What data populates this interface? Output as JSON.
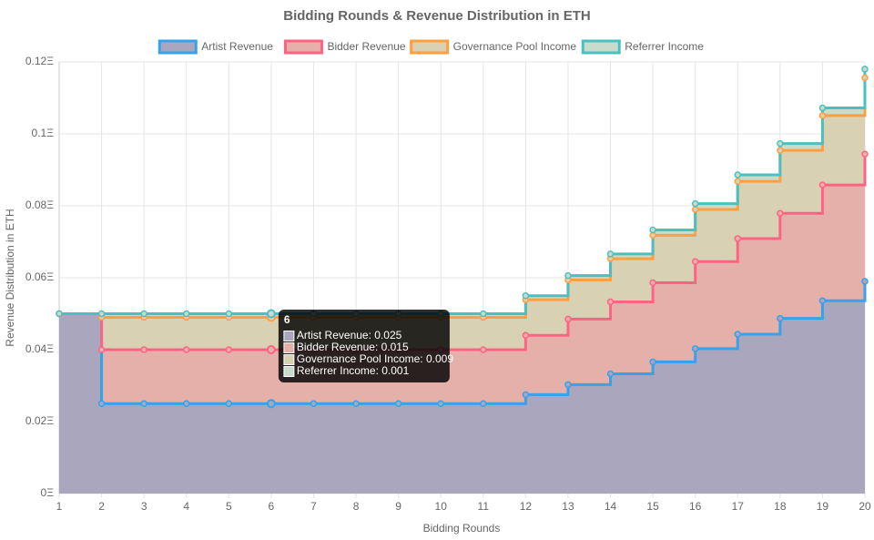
{
  "chart_data": {
    "type": "stepped-stacked-area",
    "title": "Bidding Rounds & Revenue Distribution in ETH",
    "x_label": "Bidding Rounds",
    "y_label": "Revenue Distribution in ETH",
    "x": [
      1,
      2,
      3,
      4,
      5,
      6,
      7,
      8,
      9,
      10,
      11,
      12,
      13,
      14,
      15,
      16,
      17,
      18,
      19,
      20
    ],
    "xlim": [
      1,
      20
    ],
    "xticks": [
      1,
      2,
      3,
      4,
      5,
      6,
      7,
      8,
      9,
      10,
      11,
      12,
      13,
      14,
      15,
      16,
      17,
      18,
      19,
      20
    ],
    "ylim": [
      0,
      0.12
    ],
    "yticks": [
      {
        "value": 0,
        "label": "0Ξ"
      },
      {
        "value": 0.02,
        "label": "0.02Ξ"
      },
      {
        "value": 0.04,
        "label": "0.04Ξ"
      },
      {
        "value": 0.06,
        "label": "0.06Ξ"
      },
      {
        "value": 0.08,
        "label": "0.08Ξ"
      },
      {
        "value": 0.1,
        "label": "0.1Ξ"
      },
      {
        "value": 0.12,
        "label": "0.12Ξ"
      }
    ],
    "grid": true,
    "stacked": true,
    "legend": "top",
    "series": [
      {
        "name": "Artist Revenue",
        "color": "#36a2eb",
        "fill_color": "#aaa6be",
        "values": [
          0.05,
          0.025,
          0.025,
          0.025,
          0.025,
          0.025,
          0.025,
          0.025,
          0.025,
          0.025,
          0.025,
          0.0275,
          0.0303,
          0.0333,
          0.0366,
          0.0403,
          0.0443,
          0.0487,
          0.0536,
          0.059
        ]
      },
      {
        "name": "Bidder Revenue",
        "color": "#ff6384",
        "fill_color": "#e5b0aa",
        "values": [
          0,
          0.015,
          0.015,
          0.015,
          0.015,
          0.015,
          0.015,
          0.015,
          0.015,
          0.015,
          0.015,
          0.0165,
          0.0182,
          0.02,
          0.022,
          0.0242,
          0.0266,
          0.0292,
          0.0322,
          0.0354
        ]
      },
      {
        "name": "Governance Pool Income",
        "color": "#ff9f40",
        "fill_color": "#d9d1b4",
        "values": [
          0,
          0.009,
          0.009,
          0.009,
          0.009,
          0.009,
          0.009,
          0.009,
          0.009,
          0.009,
          0.009,
          0.0099,
          0.0109,
          0.012,
          0.0132,
          0.0145,
          0.0159,
          0.0175,
          0.0193,
          0.0212
        ]
      },
      {
        "name": "Referrer Income",
        "color": "#4bc0c0",
        "fill_color": "#c9dccb",
        "values": [
          0,
          0.001,
          0.001,
          0.001,
          0.001,
          0.001,
          0.001,
          0.001,
          0.001,
          0.001,
          0.001,
          0.0011,
          0.0012,
          0.0013,
          0.0015,
          0.0016,
          0.0018,
          0.0019,
          0.0021,
          0.0024
        ]
      }
    ],
    "tooltip": {
      "title": "6",
      "index": 5,
      "lines": [
        "Artist Revenue: 0.025",
        "Bidder Revenue: 0.015",
        "Governance Pool Income: 0.009",
        "Referrer Income: 0.001"
      ]
    }
  }
}
